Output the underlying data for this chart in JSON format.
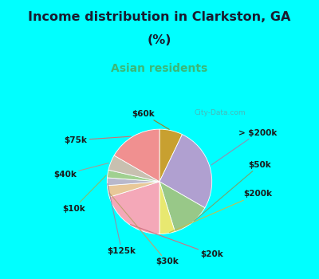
{
  "title_line1": "Income distribution in Clarkston, GA",
  "title_line2": "(%)",
  "subtitle": "Asian residents",
  "title_color": "#1a1a2e",
  "subtitle_color": "#3ab878",
  "bg_cyan": "#00ffff",
  "bg_chart": "#e8f5ee",
  "watermark": "City-Data.com",
  "ordered_labels": [
    "$60k",
    "> $200k",
    "$50k",
    "$200k",
    "$20k",
    "$30k",
    "$125k",
    "$10k",
    "$40k",
    "$75k"
  ],
  "ordered_values": [
    6,
    22,
    10,
    4,
    17,
    3,
    2,
    2,
    4,
    14
  ],
  "ordered_colors": [
    "#c8a030",
    "#b0a0d0",
    "#98c888",
    "#e8e870",
    "#f4a8b8",
    "#e8c898",
    "#b8b8cc",
    "#a0d090",
    "#c8c0b0",
    "#f09090"
  ],
  "label_fontsize": 7.5,
  "title_fontsize": 11.5,
  "subtitle_fontsize": 10
}
